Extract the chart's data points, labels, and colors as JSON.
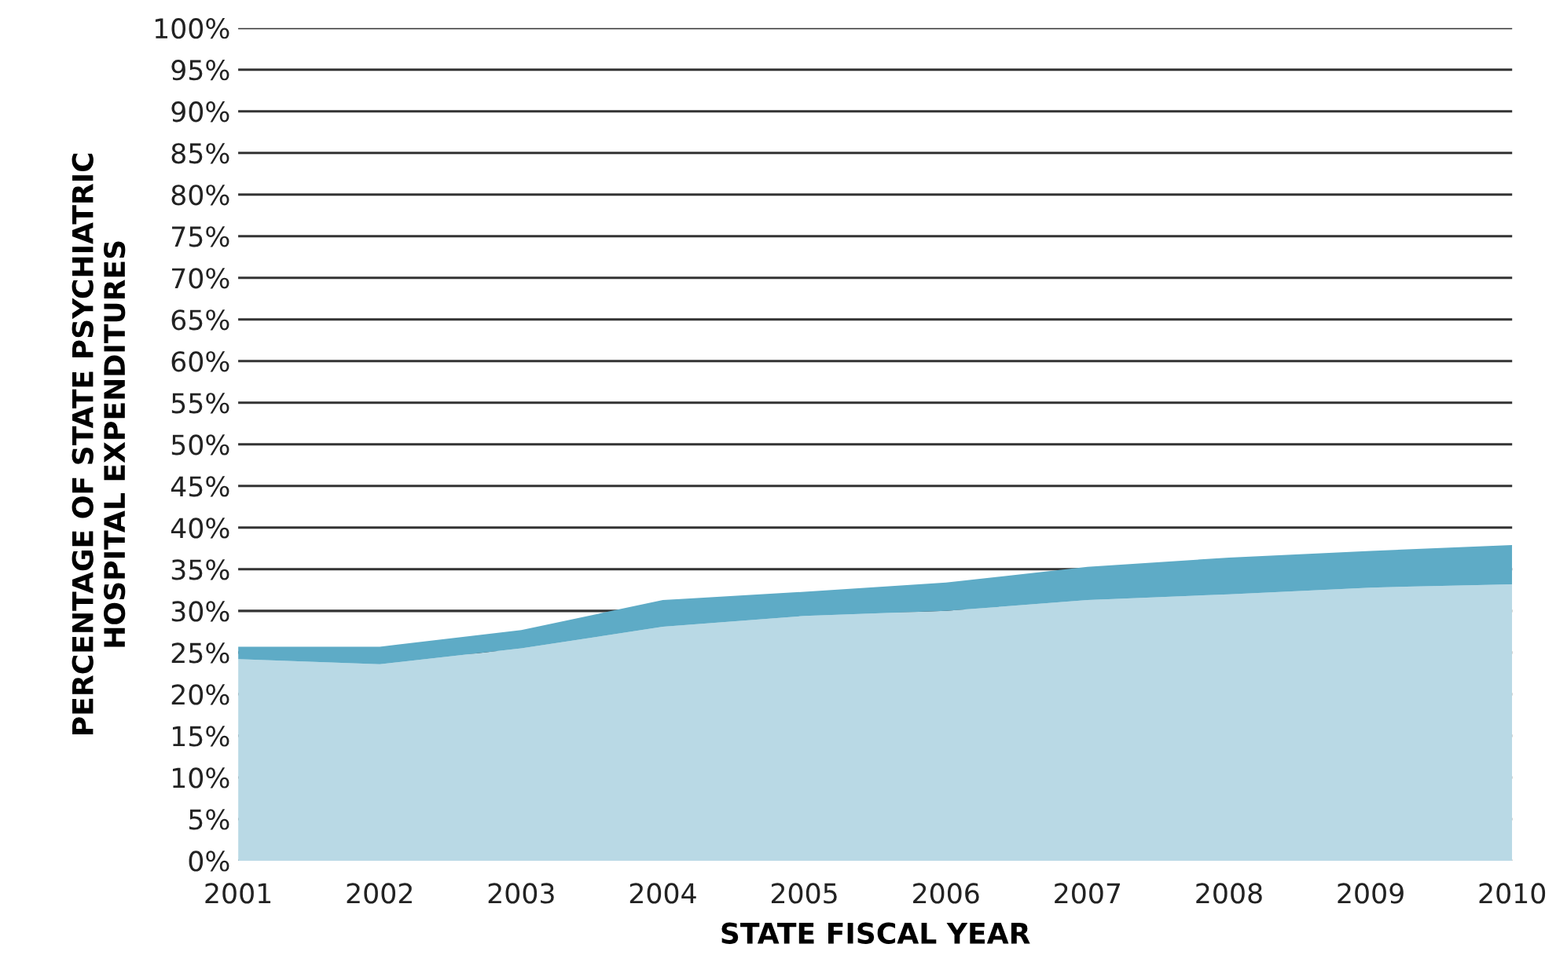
{
  "chart_data": {
    "type": "area",
    "stacked": true,
    "xlabel": "STATE FISCAL YEAR",
    "ylabel": "PERCENTAGE OF STATE PSYCHIATRIC\nHOSPITAL EXPENDITURES",
    "categories": [
      "2001",
      "2002",
      "2003",
      "2004",
      "2005",
      "2006",
      "2007",
      "2008",
      "2009",
      "2010"
    ],
    "series": [
      {
        "color": "#b9d9e5",
        "values": [
          24.2,
          23.6,
          25.5,
          28.1,
          29.4,
          30.0,
          31.3,
          32.0,
          32.8,
          33.2
        ]
      },
      {
        "color": "#5eabc6",
        "values": [
          1.5,
          2.1,
          2.2,
          3.2,
          2.9,
          3.4,
          4.0,
          4.4,
          4.4,
          4.7
        ]
      }
    ],
    "ylim": [
      0,
      100
    ],
    "yticks": [
      {
        "value": 0,
        "label": "0%"
      },
      {
        "value": 5,
        "label": "5%"
      },
      {
        "value": 10,
        "label": "10%"
      },
      {
        "value": 15,
        "label": "15%"
      },
      {
        "value": 20,
        "label": "20%"
      },
      {
        "value": 25,
        "label": "25%"
      },
      {
        "value": 30,
        "label": "30%"
      },
      {
        "value": 35,
        "label": "35%"
      },
      {
        "value": 40,
        "label": "40%"
      },
      {
        "value": 45,
        "label": "45%"
      },
      {
        "value": 50,
        "label": "50%"
      },
      {
        "value": 55,
        "label": "55%"
      },
      {
        "value": 60,
        "label": "60%"
      },
      {
        "value": 65,
        "label": "65%"
      },
      {
        "value": 70,
        "label": "70%"
      },
      {
        "value": 75,
        "label": "75%"
      },
      {
        "value": 80,
        "label": "80%"
      },
      {
        "value": 85,
        "label": "85%"
      },
      {
        "value": 90,
        "label": "90%"
      },
      {
        "value": 95,
        "label": "95%"
      },
      {
        "value": 100,
        "label": "100%"
      }
    ],
    "grid": "y"
  }
}
